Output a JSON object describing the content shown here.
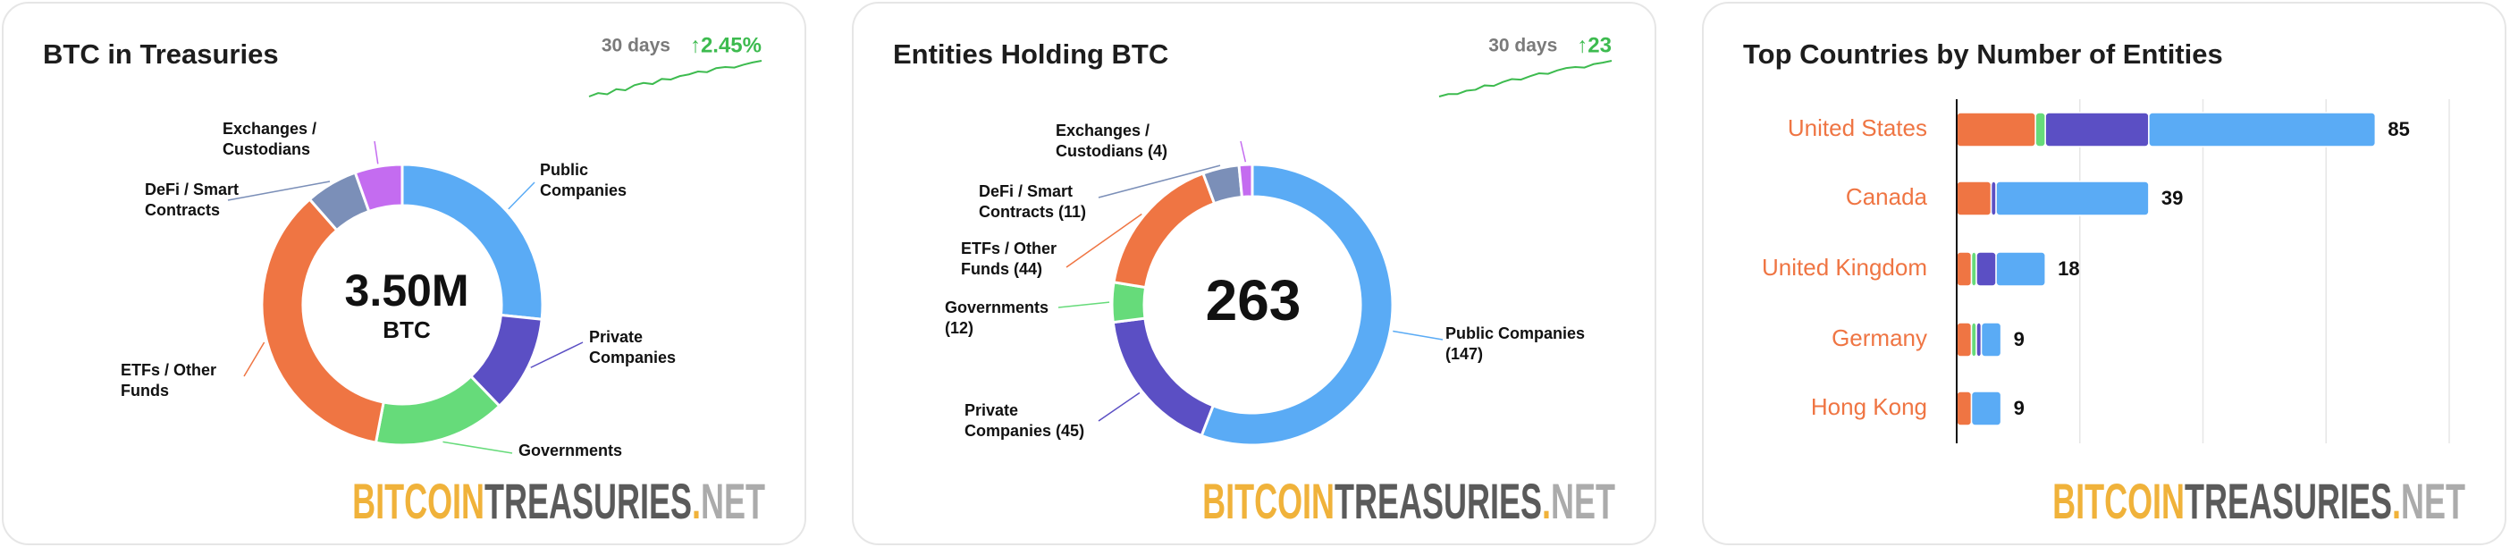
{
  "brand": [
    "BITCOIN",
    "TREASURIES",
    ".",
    "NET"
  ],
  "chart_data": [
    {
      "type": "pie",
      "title": "BTC in Treasuries",
      "period": "30 days",
      "change": "↑2.45%",
      "sparkline": [
        0,
        0.6,
        0.4,
        1.3,
        1.1,
        2.0,
        2.4,
        2.2,
        3.1,
        3.0,
        3.6,
        3.9,
        4.4,
        4.3,
        5.0,
        5.2,
        5.1,
        5.6,
        6.0,
        6.3
      ],
      "center_label": "3.50M",
      "center_sublabel": "BTC",
      "categories": [
        "Public Companies",
        "Private Companies",
        "Governments",
        "ETFs / Other Funds",
        "DeFi / Smart Contracts",
        "Exchanges / Custodians"
      ],
      "values": [
        0.93,
        0.39,
        0.53,
        1.24,
        0.21,
        0.19
      ],
      "colors": [
        "#5aabf5",
        "#5b4fc4",
        "#66db7a",
        "#ef7543",
        "#7b8fb8",
        "#c46cf0"
      ]
    },
    {
      "type": "pie",
      "title": "Entities Holding BTC",
      "period": "30 days",
      "change": "↑23",
      "sparkline": [
        0,
        0.5,
        0.5,
        1.2,
        1.4,
        2.3,
        2.2,
        3.0,
        3.6,
        3.5,
        4.2,
        4.8,
        4.7,
        5.4,
        5.9,
        6.1,
        6.0,
        6.7,
        7.0,
        7.4
      ],
      "total": 263,
      "categories": [
        "Public Companies",
        "Private Companies",
        "Governments",
        "ETFs / Other Funds",
        "DeFi / Smart Contracts",
        "Exchanges / Custodians"
      ],
      "values": [
        147,
        45,
        12,
        44,
        11,
        4
      ],
      "value_labels": [
        "(147)",
        "(45)",
        "(12)",
        "(44)",
        "(11)",
        "(4)"
      ],
      "colors": [
        "#5aabf5",
        "#5b4fc4",
        "#66db7a",
        "#ef7543",
        "#7b8fb8",
        "#c46cf0"
      ]
    },
    {
      "type": "bar",
      "orientation": "horizontal",
      "stacked": true,
      "title": "Top Countries by Number of Entities",
      "categories": [
        "United States",
        "Canada",
        "United Kingdom",
        "Germany",
        "Hong Kong"
      ],
      "series": [
        {
          "color": "#ef7543",
          "values": [
            16,
            7,
            3,
            3,
            3
          ]
        },
        {
          "color": "#66db7a",
          "values": [
            2,
            0,
            1,
            1,
            0
          ]
        },
        {
          "color": "#5b4fc4",
          "values": [
            21,
            1,
            4,
            1,
            0
          ]
        },
        {
          "color": "#5aabf5",
          "values": [
            46,
            31,
            10,
            4,
            6
          ]
        }
      ],
      "totals": [
        85,
        39,
        18,
        9,
        9
      ],
      "label_color": "#ef7543",
      "xlim": [
        0,
        100
      ],
      "xticks": [
        0,
        25,
        50,
        75,
        100
      ],
      "grid": true
    }
  ]
}
